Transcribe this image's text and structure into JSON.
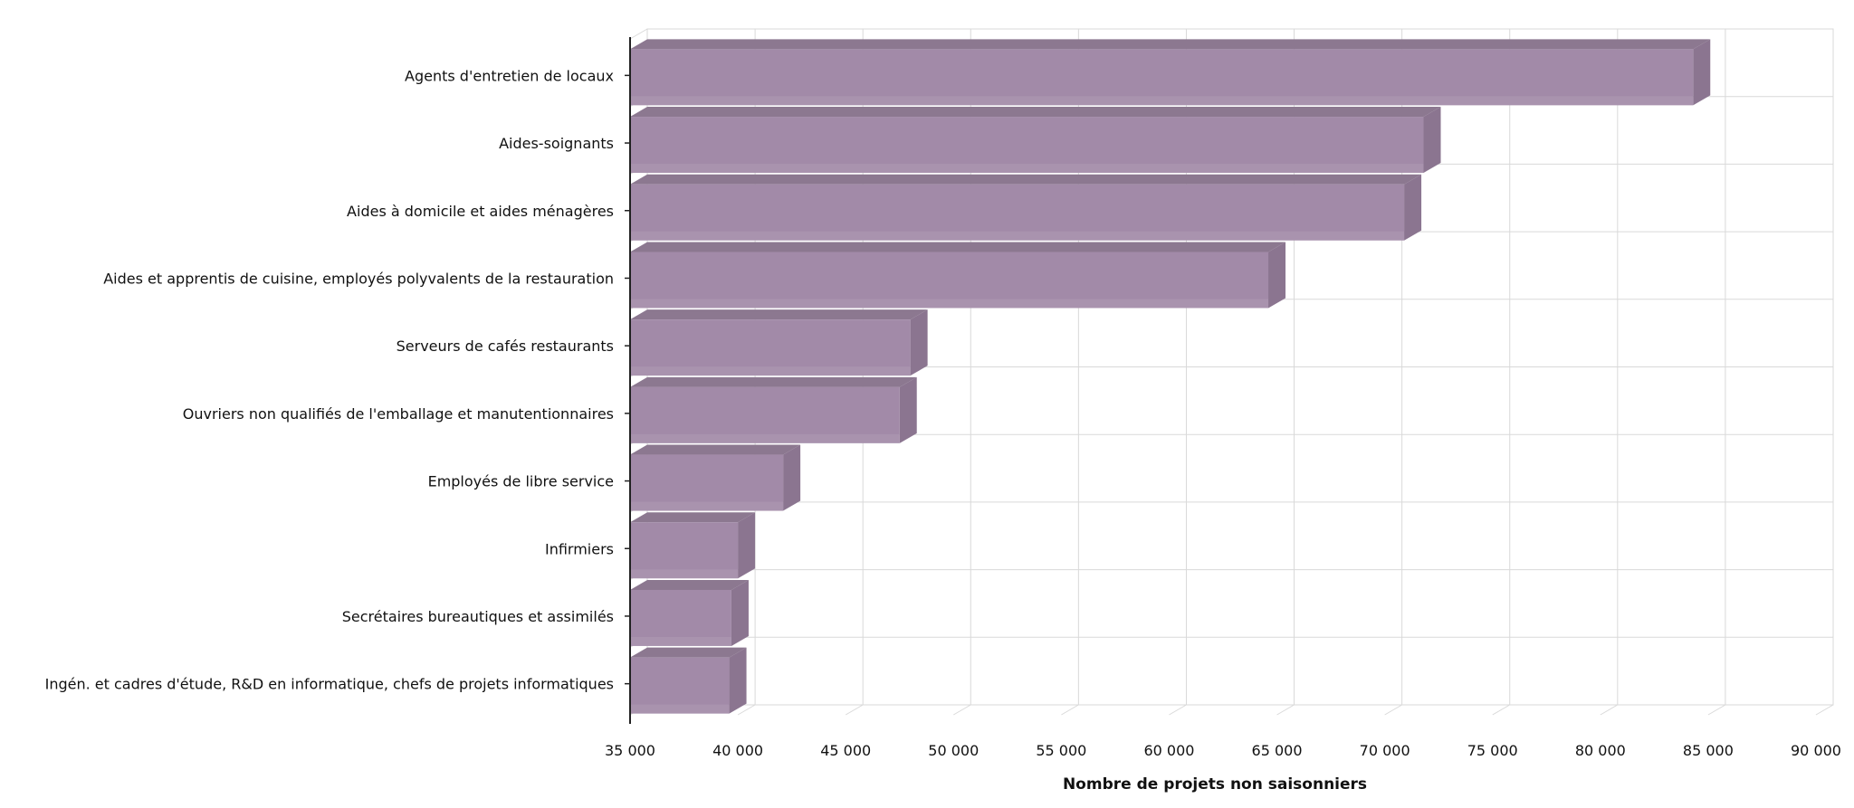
{
  "chart_data": {
    "type": "bar",
    "orientation": "horizontal",
    "three_d": true,
    "categories": [
      "Agents d'entretien de locaux",
      "Aides-soignants",
      "Aides à domicile et aides ménagères",
      "Aides et apprentis de cuisine, employés polyvalents de la restauration",
      "Serveurs de cafés restaurants",
      "Ouvriers non qualifiés de l'emballage et manutentionnaires",
      "Employés de libre service",
      "Infirmiers",
      "Secrétaires bureautiques et assimilés",
      "Ingén. et cadres d'étude, R&D en informatique, chefs de projets informatiques"
    ],
    "values": [
      84300,
      71800,
      70900,
      64600,
      48000,
      47500,
      42100,
      40000,
      39700,
      39600
    ],
    "xlabel": "Nombre de projets non saisonniers",
    "ylabel": "",
    "xlim": [
      35000,
      90000
    ],
    "x_ticks": [
      35000,
      40000,
      45000,
      50000,
      55000,
      60000,
      65000,
      70000,
      75000,
      80000,
      85000,
      90000
    ],
    "x_tick_labels": [
      "35 000",
      "40 000",
      "45 000",
      "50 000",
      "55 000",
      "60 000",
      "65 000",
      "70 000",
      "75 000",
      "80 000",
      "85 000",
      "90 000"
    ],
    "grid": true,
    "legend": "none",
    "colors": {
      "bar_front": "#a28aa8",
      "bar_top": "#8c7890",
      "bar_side": "#8b7590",
      "grid": "#d9d9d9",
      "axis": "#222222"
    }
  }
}
